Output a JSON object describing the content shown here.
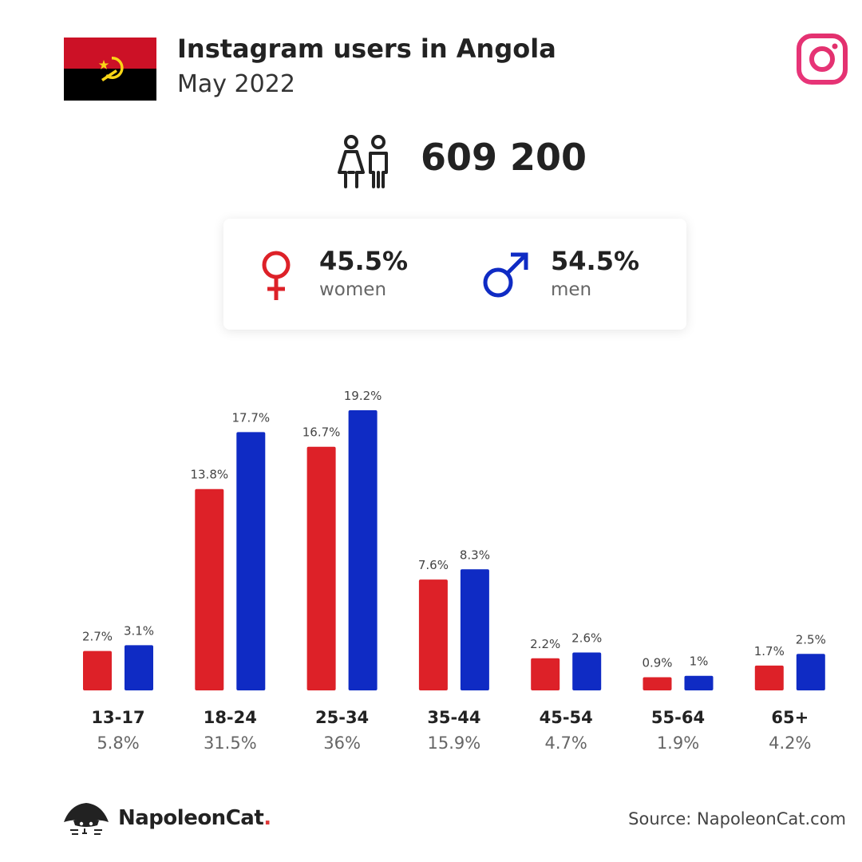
{
  "header": {
    "title": "Instagram users in Angola",
    "subtitle": "May 2022"
  },
  "total": {
    "value": "609 200"
  },
  "gender": {
    "women": {
      "pct": "45.5%",
      "label": "women",
      "color": "#dd2128"
    },
    "men": {
      "pct": "54.5%",
      "label": "men",
      "color": "#0f2bc4"
    }
  },
  "chart_data": {
    "type": "bar",
    "categories": [
      "13-17",
      "18-24",
      "25-34",
      "35-44",
      "45-54",
      "55-64",
      "65+"
    ],
    "category_totals": [
      "5.8%",
      "31.5%",
      "36%",
      "15.9%",
      "4.7%",
      "1.9%",
      "4.2%"
    ],
    "series": [
      {
        "name": "women",
        "color": "#dd2128",
        "values": [
          2.7,
          13.8,
          16.7,
          7.6,
          2.2,
          0.9,
          1.7
        ],
        "labels": [
          "2.7%",
          "13.8%",
          "16.7%",
          "7.6%",
          "2.2%",
          "0.9%",
          "1.7%"
        ]
      },
      {
        "name": "men",
        "color": "#0f2bc4",
        "values": [
          3.1,
          17.7,
          19.2,
          8.3,
          2.6,
          1.0,
          2.5
        ],
        "labels": [
          "3.1%",
          "17.7%",
          "19.2%",
          "8.3%",
          "2.6%",
          "1%",
          "2.5%"
        ]
      }
    ],
    "ylim": [
      0,
      19.2
    ],
    "grid": false
  },
  "footer": {
    "brand": "NapoleonCat",
    "brand_dot": ".",
    "source": "Source: NapoleonCat.com"
  },
  "icons": {
    "flag": "angola-flag-icon",
    "instagram": "instagram-icon",
    "users": "users-icon",
    "female": "female-symbol-icon",
    "male": "male-symbol-icon",
    "logo": "napoleoncat-logo-icon"
  }
}
